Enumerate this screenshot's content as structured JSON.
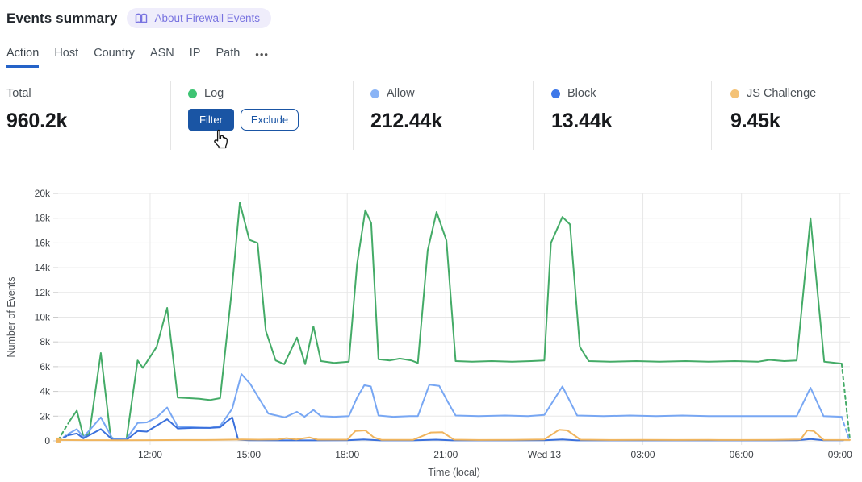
{
  "header": {
    "title": "Events summary",
    "about_badge_label": "About Firewall Events"
  },
  "tabs": {
    "active": "Action",
    "items": [
      "Action",
      "Host",
      "Country",
      "ASN",
      "IP",
      "Path"
    ],
    "more_label": "•••"
  },
  "stats": {
    "total": {
      "label": "Total",
      "value": "960.2k"
    },
    "cards": [
      {
        "label": "Log",
        "dot_color": "#3ec473",
        "hover_buttons": {
          "filter": "Filter",
          "exclude": "Exclude"
        }
      },
      {
        "label": "Allow",
        "value": "212.44k",
        "dot_color": "#8ab4f6"
      },
      {
        "label": "Block",
        "value": "13.44k",
        "dot_color": "#3e78e9"
      },
      {
        "label": "JS Challenge",
        "value": "9.45k",
        "dot_color": "#f4c276"
      }
    ]
  },
  "colors": {
    "accent_blue": "#1a55a4",
    "tab_underline": "#2563c8",
    "badge_bg": "#efedfb",
    "badge_text": "#7873e0",
    "grid": "#e7e7e7",
    "tick_text": "#3d4146",
    "axis_title_text": "#4d5156"
  },
  "chart_data": {
    "type": "line",
    "title": "",
    "xlabel": "Time (local)",
    "ylabel": "Number of Events",
    "x_unit": "hours since Tue 00:00 local; 24 = Wed 13 00:00",
    "values_unit": "thousands of events",
    "xlim": [
      9.2,
      33.3
    ],
    "ylim": [
      0,
      20
    ],
    "grid": true,
    "legend_position": "shown as stat cards above chart",
    "x_ticks": [
      {
        "v": 12,
        "label": "12:00"
      },
      {
        "v": 15,
        "label": "15:00"
      },
      {
        "v": 18,
        "label": "18:00"
      },
      {
        "v": 21,
        "label": "21:00"
      },
      {
        "v": 24,
        "label": "Wed 13"
      },
      {
        "v": 27,
        "label": "03:00"
      },
      {
        "v": 30,
        "label": "06:00"
      },
      {
        "v": 33,
        "label": "09:00"
      }
    ],
    "y_ticks": [
      {
        "v": 0,
        "label": "0"
      },
      {
        "v": 2,
        "label": "2k"
      },
      {
        "v": 4,
        "label": "4k"
      },
      {
        "v": 6,
        "label": "6k"
      },
      {
        "v": 8,
        "label": "8k"
      },
      {
        "v": 10,
        "label": "10k"
      },
      {
        "v": 12,
        "label": "12k"
      },
      {
        "v": 14,
        "label": "14k"
      },
      {
        "v": 16,
        "label": "16k"
      },
      {
        "v": 18,
        "label": "18k"
      },
      {
        "v": 20,
        "label": "20k"
      }
    ],
    "series": [
      {
        "name": "Log",
        "color": "#44ab67",
        "pre_dash": [
          [
            9.2,
            0.05
          ],
          [
            9.55,
            1.6
          ]
        ],
        "post_dash": [
          [
            33.05,
            6.25
          ],
          [
            33.3,
            0.1
          ]
        ],
        "points": [
          [
            9.55,
            1.6
          ],
          [
            9.77,
            2.45
          ],
          [
            9.97,
            0.35
          ],
          [
            10.15,
            0.6
          ],
          [
            10.5,
            7.1
          ],
          [
            10.8,
            0.3
          ],
          [
            10.95,
            0.12
          ],
          [
            11.28,
            0.12
          ],
          [
            11.62,
            6.5
          ],
          [
            11.78,
            5.9
          ],
          [
            12.2,
            7.6
          ],
          [
            12.52,
            10.75
          ],
          [
            12.84,
            3.5
          ],
          [
            13.2,
            3.45
          ],
          [
            13.5,
            3.4
          ],
          [
            13.82,
            3.3
          ],
          [
            14.13,
            3.45
          ],
          [
            14.48,
            12.0
          ],
          [
            14.73,
            19.25
          ],
          [
            15.02,
            16.25
          ],
          [
            15.27,
            16.0
          ],
          [
            15.52,
            8.9
          ],
          [
            15.82,
            6.5
          ],
          [
            16.08,
            6.2
          ],
          [
            16.47,
            8.35
          ],
          [
            16.72,
            6.2
          ],
          [
            16.97,
            9.25
          ],
          [
            17.2,
            6.45
          ],
          [
            17.6,
            6.3
          ],
          [
            18.05,
            6.4
          ],
          [
            18.3,
            14.3
          ],
          [
            18.55,
            18.65
          ],
          [
            18.73,
            17.6
          ],
          [
            18.95,
            6.6
          ],
          [
            19.3,
            6.5
          ],
          [
            19.6,
            6.65
          ],
          [
            19.95,
            6.5
          ],
          [
            20.15,
            6.3
          ],
          [
            20.45,
            15.4
          ],
          [
            20.72,
            18.5
          ],
          [
            21.02,
            16.2
          ],
          [
            21.3,
            6.45
          ],
          [
            21.8,
            6.4
          ],
          [
            22.4,
            6.45
          ],
          [
            23.0,
            6.4
          ],
          [
            23.6,
            6.45
          ],
          [
            24.0,
            6.5
          ],
          [
            24.2,
            16.0
          ],
          [
            24.55,
            18.1
          ],
          [
            24.78,
            17.5
          ],
          [
            25.08,
            7.6
          ],
          [
            25.35,
            6.45
          ],
          [
            26.0,
            6.4
          ],
          [
            26.8,
            6.45
          ],
          [
            27.5,
            6.4
          ],
          [
            28.3,
            6.45
          ],
          [
            29.0,
            6.4
          ],
          [
            29.8,
            6.45
          ],
          [
            30.5,
            6.4
          ],
          [
            30.85,
            6.55
          ],
          [
            31.3,
            6.45
          ],
          [
            31.68,
            6.5
          ],
          [
            32.1,
            18.0
          ],
          [
            32.52,
            6.4
          ],
          [
            33.05,
            6.25
          ]
        ]
      },
      {
        "name": "Allow",
        "color": "#78a7f3",
        "pre_dash": [
          [
            9.2,
            0.0
          ],
          [
            9.5,
            0.55
          ]
        ],
        "post_dash": [
          [
            33.05,
            1.95
          ],
          [
            33.28,
            0.1
          ]
        ],
        "points": [
          [
            9.5,
            0.55
          ],
          [
            9.77,
            0.95
          ],
          [
            9.97,
            0.3
          ],
          [
            10.5,
            1.9
          ],
          [
            10.85,
            0.2
          ],
          [
            11.28,
            0.15
          ],
          [
            11.62,
            1.45
          ],
          [
            11.9,
            1.5
          ],
          [
            12.2,
            1.9
          ],
          [
            12.52,
            2.7
          ],
          [
            12.84,
            1.15
          ],
          [
            13.3,
            1.1
          ],
          [
            13.82,
            1.05
          ],
          [
            14.13,
            1.2
          ],
          [
            14.5,
            2.6
          ],
          [
            14.78,
            5.4
          ],
          [
            15.05,
            4.6
          ],
          [
            15.3,
            3.5
          ],
          [
            15.6,
            2.2
          ],
          [
            15.85,
            2.05
          ],
          [
            16.1,
            1.9
          ],
          [
            16.47,
            2.35
          ],
          [
            16.7,
            1.95
          ],
          [
            16.97,
            2.5
          ],
          [
            17.2,
            2.0
          ],
          [
            17.6,
            1.95
          ],
          [
            18.05,
            2.0
          ],
          [
            18.3,
            3.5
          ],
          [
            18.52,
            4.5
          ],
          [
            18.72,
            4.4
          ],
          [
            18.95,
            2.05
          ],
          [
            19.4,
            1.95
          ],
          [
            19.9,
            2.0
          ],
          [
            20.15,
            2.0
          ],
          [
            20.5,
            4.55
          ],
          [
            20.8,
            4.45
          ],
          [
            21.05,
            3.2
          ],
          [
            21.3,
            2.05
          ],
          [
            22.0,
            2.0
          ],
          [
            22.8,
            2.05
          ],
          [
            23.5,
            2.0
          ],
          [
            24.0,
            2.1
          ],
          [
            24.55,
            4.4
          ],
          [
            25.0,
            2.05
          ],
          [
            25.8,
            2.0
          ],
          [
            26.6,
            2.05
          ],
          [
            27.4,
            2.0
          ],
          [
            28.2,
            2.05
          ],
          [
            29.0,
            2.0
          ],
          [
            30.0,
            2.0
          ],
          [
            31.0,
            2.0
          ],
          [
            31.68,
            2.0
          ],
          [
            32.1,
            4.3
          ],
          [
            32.5,
            2.0
          ],
          [
            33.05,
            1.95
          ]
        ]
      },
      {
        "name": "Block",
        "color": "#3a70dc",
        "pre_dash": [
          [
            9.2,
            0.0
          ],
          [
            9.5,
            0.45
          ]
        ],
        "post_dash": [],
        "points": [
          [
            9.5,
            0.45
          ],
          [
            9.77,
            0.6
          ],
          [
            9.97,
            0.2
          ],
          [
            10.5,
            0.95
          ],
          [
            10.85,
            0.1
          ],
          [
            11.28,
            0.08
          ],
          [
            11.62,
            0.8
          ],
          [
            11.9,
            0.75
          ],
          [
            12.52,
            1.75
          ],
          [
            12.84,
            1.0
          ],
          [
            13.3,
            1.05
          ],
          [
            13.82,
            1.05
          ],
          [
            14.13,
            1.1
          ],
          [
            14.35,
            1.6
          ],
          [
            14.5,
            1.9
          ],
          [
            14.68,
            0.1
          ],
          [
            15.0,
            0.05
          ],
          [
            16.0,
            0.04
          ],
          [
            17.0,
            0.04
          ],
          [
            18.0,
            0.05
          ],
          [
            18.5,
            0.12
          ],
          [
            19.0,
            0.04
          ],
          [
            20.0,
            0.04
          ],
          [
            20.7,
            0.1
          ],
          [
            21.2,
            0.04
          ],
          [
            22.0,
            0.04
          ],
          [
            23.0,
            0.04
          ],
          [
            24.0,
            0.05
          ],
          [
            24.55,
            0.12
          ],
          [
            25.0,
            0.04
          ],
          [
            26.0,
            0.04
          ],
          [
            27.0,
            0.04
          ],
          [
            28.0,
            0.04
          ],
          [
            29.0,
            0.04
          ],
          [
            30.0,
            0.04
          ],
          [
            31.0,
            0.04
          ],
          [
            31.7,
            0.05
          ],
          [
            32.1,
            0.15
          ],
          [
            32.5,
            0.05
          ],
          [
            33.1,
            0.05
          ]
        ]
      },
      {
        "name": "JS Challenge",
        "color": "#f0b55e",
        "pre_dash": [],
        "post_dash": [],
        "points": [
          [
            9.2,
            0.07
          ],
          [
            10.0,
            0.06
          ],
          [
            11.0,
            0.05
          ],
          [
            12.0,
            0.06
          ],
          [
            13.0,
            0.07
          ],
          [
            14.0,
            0.08
          ],
          [
            14.8,
            0.12
          ],
          [
            15.3,
            0.1
          ],
          [
            15.9,
            0.12
          ],
          [
            16.15,
            0.22
          ],
          [
            16.45,
            0.12
          ],
          [
            16.85,
            0.28
          ],
          [
            17.1,
            0.1
          ],
          [
            18.0,
            0.1
          ],
          [
            18.25,
            0.8
          ],
          [
            18.55,
            0.85
          ],
          [
            18.8,
            0.3
          ],
          [
            19.05,
            0.08
          ],
          [
            20.0,
            0.08
          ],
          [
            20.55,
            0.68
          ],
          [
            20.9,
            0.7
          ],
          [
            21.25,
            0.1
          ],
          [
            22.0,
            0.07
          ],
          [
            23.0,
            0.08
          ],
          [
            24.0,
            0.12
          ],
          [
            24.45,
            0.9
          ],
          [
            24.7,
            0.85
          ],
          [
            25.1,
            0.1
          ],
          [
            26.0,
            0.07
          ],
          [
            27.0,
            0.08
          ],
          [
            28.0,
            0.07
          ],
          [
            29.0,
            0.08
          ],
          [
            30.0,
            0.07
          ],
          [
            31.0,
            0.08
          ],
          [
            31.8,
            0.12
          ],
          [
            32.0,
            0.85
          ],
          [
            32.2,
            0.8
          ],
          [
            32.5,
            0.08
          ],
          [
            33.3,
            0.07
          ]
        ]
      }
    ]
  }
}
